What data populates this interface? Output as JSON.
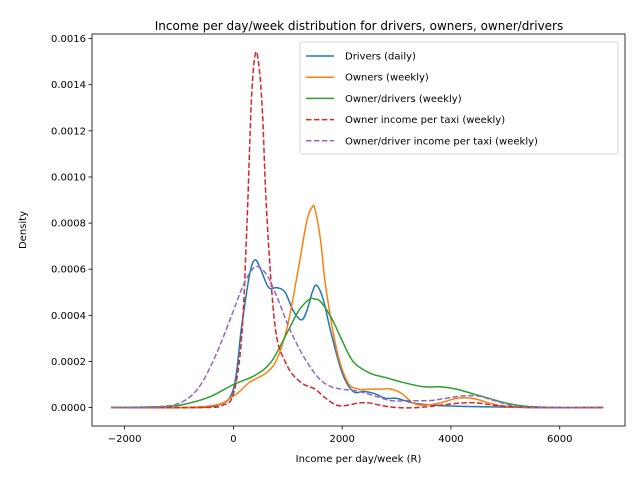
{
  "chart_data": {
    "type": "line",
    "title": "Income per day/week distribution for drivers, owners, owner/drivers",
    "xlabel": "Income per day/week (R)",
    "ylabel": "Density",
    "xlim": [
      -2600,
      7200
    ],
    "ylim": [
      -8e-05,
      0.00162
    ],
    "xticks": [
      -2000,
      0,
      2000,
      4000,
      6000
    ],
    "xtick_labels": [
      "−2000",
      "0",
      "2000",
      "4000",
      "6000"
    ],
    "yticks": [
      0,
      0.0002,
      0.0004,
      0.0006,
      0.0008,
      0.001,
      0.0012,
      0.0014,
      0.0016
    ],
    "ytick_labels": [
      "0.0000",
      "0.0002",
      "0.0004",
      "0.0006",
      "0.0008",
      "0.0010",
      "0.0012",
      "0.0014",
      "0.0016"
    ],
    "grid": false,
    "legend_position": "top-right",
    "series": [
      {
        "name": "Drivers (daily)",
        "color": "#1f77b4",
        "dash": "solid",
        "x": [
          -2250,
          -1000,
          -300,
          0,
          150,
          300,
          400,
          500,
          650,
          800,
          950,
          1100,
          1250,
          1350,
          1450,
          1530,
          1650,
          1800,
          2000,
          2200,
          2400,
          2600,
          2800,
          3000,
          3300,
          3700,
          4200,
          4800,
          5500,
          6800
        ],
        "y": [
          0,
          0,
          1e-05,
          8e-05,
          0.00035,
          0.00058,
          0.00064,
          0.0006,
          0.00052,
          0.00052,
          0.0005,
          0.00042,
          0.00038,
          0.00042,
          0.0005,
          0.00053,
          0.00047,
          0.00032,
          0.00015,
          7e-05,
          7e-05,
          6e-05,
          4e-05,
          4e-05,
          2e-05,
          1e-05,
          5e-06,
          3e-06,
          0,
          0
        ]
      },
      {
        "name": "Owners (weekly)",
        "color": "#ff7f0e",
        "dash": "solid",
        "x": [
          -2250,
          -500,
          0,
          300,
          600,
          800,
          1000,
          1200,
          1350,
          1450,
          1500,
          1600,
          1700,
          1900,
          2100,
          2300,
          2500,
          2700,
          2900,
          3100,
          3300,
          3500,
          3800,
          4100,
          4400,
          4700,
          5000,
          5500,
          6800
        ],
        "y": [
          0,
          5e-06,
          5e-05,
          0.00011,
          0.00015,
          0.00021,
          0.00036,
          0.00061,
          0.00081,
          0.00087,
          0.00086,
          0.00073,
          0.00052,
          0.00025,
          0.00011,
          8e-05,
          8e-05,
          8e-05,
          8e-05,
          6e-05,
          2e-05,
          1e-05,
          2e-05,
          4e-05,
          4e-05,
          2e-05,
          5e-06,
          0,
          0
        ]
      },
      {
        "name": "Owner/drivers (weekly)",
        "color": "#2ca02c",
        "dash": "solid",
        "x": [
          -2250,
          -1200,
          -800,
          -400,
          0,
          400,
          700,
          1000,
          1200,
          1400,
          1500,
          1600,
          1800,
          2000,
          2200,
          2500,
          2800,
          3100,
          3500,
          3800,
          4100,
          4400,
          4700,
          5000,
          5400,
          6000,
          6800
        ],
        "y": [
          0,
          5e-06,
          2e-05,
          5e-05,
          0.0001,
          0.00014,
          0.0002,
          0.00033,
          0.00042,
          0.00047,
          0.00047,
          0.00046,
          0.00039,
          0.00029,
          0.0002,
          0.00015,
          0.00013,
          0.00011,
          9e-05,
          9e-05,
          8e-05,
          6e-05,
          4e-05,
          2e-05,
          5e-06,
          0,
          0
        ]
      },
      {
        "name": "Owner income per taxi (weekly)",
        "color": "#d62728",
        "dash": "dashed",
        "x": [
          -2250,
          -600,
          -200,
          0,
          150,
          250,
          330,
          400,
          460,
          530,
          600,
          700,
          800,
          950,
          1100,
          1300,
          1500,
          1700,
          1900,
          2100,
          2300,
          2500,
          2700,
          3000,
          3400,
          3800,
          4200,
          4500,
          4800,
          5500,
          6800
        ],
        "y": [
          0,
          0,
          1e-05,
          6e-05,
          0.0003,
          0.0008,
          0.00133,
          0.00153,
          0.0015,
          0.0013,
          0.0009,
          0.00052,
          0.0003,
          0.0002,
          0.00014,
          0.0001,
          8e-05,
          4e-05,
          1e-05,
          1e-05,
          2e-05,
          2e-05,
          1e-05,
          0,
          0,
          1e-05,
          2e-05,
          2e-05,
          1e-05,
          0,
          0
        ]
      },
      {
        "name": "Owner/driver income per taxi (weekly)",
        "color": "#9467bd",
        "dash": "dashed",
        "x": [
          -2250,
          -1300,
          -900,
          -600,
          -300,
          0,
          200,
          400,
          600,
          800,
          1000,
          1200,
          1400,
          1600,
          1800,
          2000,
          2300,
          2600,
          2900,
          3200,
          3600,
          3900,
          4200,
          4500,
          4800,
          5200,
          5600,
          6800
        ],
        "y": [
          0,
          5e-06,
          3e-05,
          0.0001,
          0.00024,
          0.00042,
          0.00054,
          0.00061,
          0.00058,
          0.00048,
          0.00036,
          0.00026,
          0.00018,
          0.00012,
          9e-05,
          8e-05,
          7e-05,
          5e-05,
          3e-05,
          3e-05,
          3e-05,
          4e-05,
          5e-05,
          5e-05,
          3e-05,
          5e-06,
          0,
          0
        ]
      }
    ]
  }
}
